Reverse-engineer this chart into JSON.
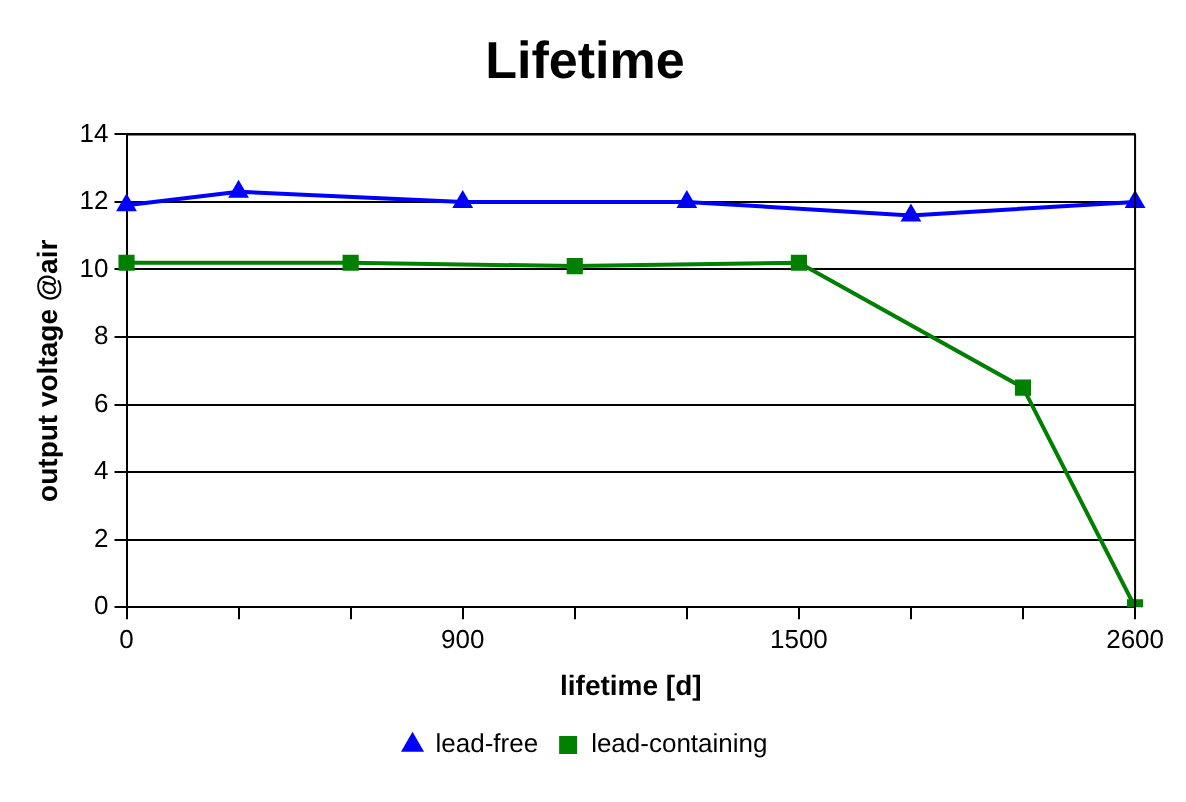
{
  "chart_data": {
    "type": "line",
    "title": "Lifetime",
    "xlabel": "lifetime [d]",
    "ylabel": "output voltage @air",
    "categories": [
      "0",
      null,
      null,
      "900",
      null,
      null,
      "1500",
      null,
      null,
      "2600"
    ],
    "series": [
      {
        "name": "lead-free",
        "color": "#0000ff",
        "marker": "triangle",
        "values": [
          11.9,
          12.3,
          null,
          12.0,
          null,
          12.0,
          null,
          11.6,
          null,
          12.0
        ]
      },
      {
        "name": "lead-containing",
        "color": "#008000",
        "marker": "square",
        "values": [
          10.2,
          null,
          10.2,
          null,
          10.1,
          null,
          10.2,
          null,
          6.5,
          0
        ]
      }
    ],
    "ylim": [
      0,
      14
    ],
    "yticks": [
      0,
      2,
      4,
      6,
      8,
      10,
      12,
      14
    ],
    "grid": "y",
    "legend": "bottom"
  }
}
